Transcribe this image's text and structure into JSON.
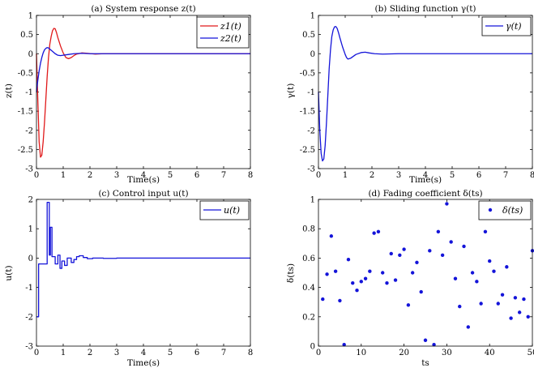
{
  "chart_data": [
    {
      "type": "line",
      "title": "(a) System response z(t)",
      "xlabel": "Time(s)",
      "ylabel": "z(t)",
      "xlim": [
        0,
        8
      ],
      "ylim": [
        -3,
        1
      ],
      "xticks": [
        "0",
        "1",
        "2",
        "3",
        "4",
        "5",
        "6",
        "7",
        "8"
      ],
      "yticks": [
        "-3",
        "-2.5",
        "-2",
        "-1.5",
        "-1",
        "-0.5",
        "0",
        "0.5",
        "1"
      ],
      "legend_position": "top-right",
      "series": [
        {
          "name": "z1(t)",
          "color": "#e0191a",
          "points": [
            [
              0,
              0
            ],
            [
              0.05,
              -1.2
            ],
            [
              0.1,
              -2.3
            ],
            [
              0.15,
              -2.7
            ],
            [
              0.2,
              -2.65
            ],
            [
              0.25,
              -2.3
            ],
            [
              0.3,
              -1.8
            ],
            [
              0.35,
              -1.2
            ],
            [
              0.4,
              -0.6
            ],
            [
              0.45,
              -0.1
            ],
            [
              0.5,
              0.25
            ],
            [
              0.55,
              0.45
            ],
            [
              0.6,
              0.6
            ],
            [
              0.65,
              0.66
            ],
            [
              0.7,
              0.65
            ],
            [
              0.75,
              0.55
            ],
            [
              0.8,
              0.42
            ],
            [
              0.9,
              0.2
            ],
            [
              1.0,
              0.02
            ],
            [
              1.1,
              -0.1
            ],
            [
              1.2,
              -0.13
            ],
            [
              1.3,
              -0.1
            ],
            [
              1.4,
              -0.05
            ],
            [
              1.5,
              -0.01
            ],
            [
              1.7,
              0.02
            ],
            [
              1.9,
              0.01
            ],
            [
              2.2,
              -0.01
            ],
            [
              2.5,
              0.0
            ],
            [
              3.0,
              0.0
            ],
            [
              8.0,
              0.0
            ]
          ]
        },
        {
          "name": "z2(t)",
          "color": "#1414d9",
          "points": [
            [
              0,
              -1.0
            ],
            [
              0.05,
              -0.7
            ],
            [
              0.1,
              -0.45
            ],
            [
              0.15,
              -0.25
            ],
            [
              0.2,
              -0.1
            ],
            [
              0.25,
              0.02
            ],
            [
              0.3,
              0.1
            ],
            [
              0.35,
              0.14
            ],
            [
              0.4,
              0.16
            ],
            [
              0.45,
              0.15
            ],
            [
              0.5,
              0.12
            ],
            [
              0.6,
              0.06
            ],
            [
              0.7,
              0.0
            ],
            [
              0.8,
              -0.04
            ],
            [
              0.9,
              -0.05
            ],
            [
              1.0,
              -0.04
            ],
            [
              1.2,
              -0.02
            ],
            [
              1.4,
              0.0
            ],
            [
              1.7,
              0.01
            ],
            [
              2.0,
              0.0
            ],
            [
              8.0,
              0.0
            ]
          ]
        }
      ]
    },
    {
      "type": "line",
      "title": "(b) Sliding function γ(t)",
      "xlabel": "Time(s)",
      "ylabel": "γ(t)",
      "xlim": [
        0,
        8
      ],
      "ylim": [
        -3,
        1
      ],
      "xticks": [
        "0",
        "1",
        "2",
        "3",
        "4",
        "5",
        "6",
        "7",
        "8"
      ],
      "yticks": [
        "-3",
        "-2.5",
        "-2",
        "-1.5",
        "-1",
        "-0.5",
        "0",
        "0.5",
        "1"
      ],
      "legend_position": "top-right",
      "series": [
        {
          "name": "γ(t)",
          "color": "#1414d9",
          "points": [
            [
              0,
              -1.0
            ],
            [
              0.05,
              -2.0
            ],
            [
              0.1,
              -2.6
            ],
            [
              0.15,
              -2.8
            ],
            [
              0.2,
              -2.75
            ],
            [
              0.25,
              -2.4
            ],
            [
              0.3,
              -1.8
            ],
            [
              0.35,
              -1.1
            ],
            [
              0.4,
              -0.4
            ],
            [
              0.45,
              0.1
            ],
            [
              0.5,
              0.45
            ],
            [
              0.55,
              0.62
            ],
            [
              0.6,
              0.7
            ],
            [
              0.65,
              0.71
            ],
            [
              0.7,
              0.66
            ],
            [
              0.75,
              0.55
            ],
            [
              0.8,
              0.42
            ],
            [
              0.9,
              0.18
            ],
            [
              1.0,
              -0.02
            ],
            [
              1.05,
              -0.1
            ],
            [
              1.1,
              -0.14
            ],
            [
              1.2,
              -0.12
            ],
            [
              1.3,
              -0.07
            ],
            [
              1.4,
              -0.02
            ],
            [
              1.6,
              0.03
            ],
            [
              1.75,
              0.04
            ],
            [
              1.9,
              0.02
            ],
            [
              2.1,
              0.0
            ],
            [
              2.4,
              -0.01
            ],
            [
              3.0,
              0.0
            ],
            [
              8.0,
              0.0
            ]
          ]
        }
      ]
    },
    {
      "type": "line",
      "title": "(c) Control input u(t)",
      "xlabel": "Time(s)",
      "ylabel": "u(t)",
      "xlim": [
        0,
        8
      ],
      "ylim": [
        -3,
        2
      ],
      "xticks": [
        "0",
        "1",
        "2",
        "3",
        "4",
        "5",
        "6",
        "7",
        "8"
      ],
      "yticks": [
        "-3",
        "-2",
        "-1",
        "0",
        "1",
        "2"
      ],
      "legend_position": "top-right",
      "series": [
        {
          "name": "u(t)",
          "color": "#1414d9",
          "points": [
            [
              0,
              -2.0
            ],
            [
              0.08,
              -2.0
            ],
            [
              0.08,
              -0.2
            ],
            [
              0.4,
              -0.2
            ],
            [
              0.4,
              1.9
            ],
            [
              0.48,
              1.9
            ],
            [
              0.48,
              0.1
            ],
            [
              0.52,
              0.1
            ],
            [
              0.52,
              1.05
            ],
            [
              0.58,
              1.05
            ],
            [
              0.58,
              0.05
            ],
            [
              0.7,
              0.05
            ],
            [
              0.7,
              -0.2
            ],
            [
              0.8,
              -0.2
            ],
            [
              0.8,
              0.1
            ],
            [
              0.88,
              0.1
            ],
            [
              0.88,
              -0.35
            ],
            [
              0.95,
              -0.35
            ],
            [
              0.95,
              -0.1
            ],
            [
              1.05,
              -0.1
            ],
            [
              1.05,
              -0.25
            ],
            [
              1.15,
              -0.25
            ],
            [
              1.15,
              0.0
            ],
            [
              1.3,
              0.0
            ],
            [
              1.3,
              -0.15
            ],
            [
              1.4,
              -0.15
            ],
            [
              1.4,
              -0.05
            ],
            [
              1.5,
              -0.05
            ],
            [
              1.5,
              0.05
            ],
            [
              1.6,
              0.05
            ],
            [
              1.6,
              0.08
            ],
            [
              1.75,
              0.08
            ],
            [
              1.75,
              0.02
            ],
            [
              1.9,
              0.02
            ],
            [
              1.9,
              -0.02
            ],
            [
              2.1,
              -0.02
            ],
            [
              2.1,
              0.0
            ],
            [
              2.5,
              0.0
            ],
            [
              2.5,
              -0.01
            ],
            [
              3.0,
              -0.01
            ],
            [
              3.0,
              0.0
            ],
            [
              8.0,
              0.0
            ]
          ]
        }
      ]
    },
    {
      "type": "scatter",
      "title": "(d) Fading coefficient δ(ts)",
      "xlabel": "ts",
      "ylabel": "δ(ts)",
      "xlim": [
        0,
        50
      ],
      "ylim": [
        0,
        1
      ],
      "xticks": [
        "0",
        "10",
        "20",
        "30",
        "40",
        "50"
      ],
      "yticks": [
        "0",
        "0.2",
        "0.4",
        "0.6",
        "0.8",
        "1"
      ],
      "legend_position": "top-right",
      "series": [
        {
          "name": "δ(ts)",
          "color": "#1414d9",
          "x": [
            1,
            2,
            3,
            4,
            5,
            6,
            7,
            8,
            9,
            10,
            11,
            12,
            13,
            14,
            15,
            16,
            17,
            18,
            19,
            20,
            21,
            22,
            23,
            24,
            25,
            26,
            27,
            28,
            29,
            30,
            31,
            32,
            33,
            34,
            35,
            36,
            37,
            38,
            39,
            40,
            41,
            42,
            43,
            44,
            45,
            46,
            47,
            48,
            49,
            50
          ],
          "y": [
            0.32,
            0.49,
            0.75,
            0.51,
            0.31,
            0.01,
            0.59,
            0.43,
            0.38,
            0.44,
            0.46,
            0.51,
            0.77,
            0.78,
            0.5,
            0.43,
            0.63,
            0.45,
            0.62,
            0.66,
            0.28,
            0.5,
            0.57,
            0.37,
            0.04,
            0.65,
            0.01,
            0.78,
            0.62,
            0.97,
            0.71,
            0.46,
            0.27,
            0.68,
            0.13,
            0.5,
            0.44,
            0.29,
            0.78,
            0.58,
            0.51,
            0.29,
            0.35,
            0.54,
            0.19,
            0.33,
            0.23,
            0.32,
            0.2,
            0.65
          ]
        }
      ]
    }
  ]
}
